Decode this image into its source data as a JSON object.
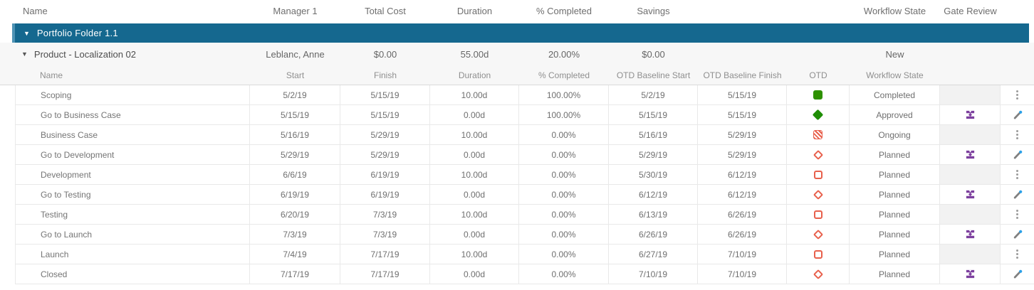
{
  "header": {
    "columns": [
      "Name",
      "Manager 1",
      "Total Cost",
      "Duration",
      "% Completed",
      "Savings",
      "Workflow State",
      "Gate Review"
    ]
  },
  "portfolio": {
    "caret": "▼",
    "label": "Portfolio Folder 1.1"
  },
  "product": {
    "caret": "▼",
    "name": "Product - Localization 02",
    "manager": "Leblanc, Anne",
    "total_cost": "$0.00",
    "duration": "55.00d",
    "pct_completed": "20.00%",
    "savings": "$0.00",
    "workflow_state": "New"
  },
  "subheader": {
    "columns": [
      "Name",
      "Start",
      "Finish",
      "Duration",
      "% Completed",
      "OTD Baseline Start",
      "OTD Baseline Finish",
      "OTD",
      "Workflow State"
    ]
  },
  "rows": [
    {
      "name": "Scoping",
      "start": "5/2/19",
      "finish": "5/15/19",
      "duration": "10.00d",
      "pct": "100.00%",
      "otd_start": "5/2/19",
      "otd_finish": "5/15/19",
      "otd_icon": "green-square",
      "workflow": "Completed",
      "gate": false,
      "action": "menu"
    },
    {
      "name": "Go to Business Case",
      "start": "5/15/19",
      "finish": "5/15/19",
      "duration": "0.00d",
      "pct": "100.00%",
      "otd_start": "5/15/19",
      "otd_finish": "5/15/19",
      "otd_icon": "green-diamond",
      "workflow": "Approved",
      "gate": true,
      "action": "edit"
    },
    {
      "name": "Business Case",
      "start": "5/16/19",
      "finish": "5/29/19",
      "duration": "10.00d",
      "pct": "0.00%",
      "otd_start": "5/16/19",
      "otd_finish": "5/29/19",
      "otd_icon": "red-hatched-square",
      "workflow": "Ongoing",
      "gate": false,
      "action": "menu"
    },
    {
      "name": "Go to Development",
      "start": "5/29/19",
      "finish": "5/29/19",
      "duration": "0.00d",
      "pct": "0.00%",
      "otd_start": "5/29/19",
      "otd_finish": "5/29/19",
      "otd_icon": "red-diamond-outline",
      "workflow": "Planned",
      "gate": true,
      "action": "edit"
    },
    {
      "name": "Development",
      "start": "6/6/19",
      "finish": "6/19/19",
      "duration": "10.00d",
      "pct": "0.00%",
      "otd_start": "5/30/19",
      "otd_finish": "6/12/19",
      "otd_icon": "red-square-outline",
      "workflow": "Planned",
      "gate": false,
      "action": "menu"
    },
    {
      "name": "Go to Testing",
      "start": "6/19/19",
      "finish": "6/19/19",
      "duration": "0.00d",
      "pct": "0.00%",
      "otd_start": "6/12/19",
      "otd_finish": "6/12/19",
      "otd_icon": "red-diamond-outline",
      "workflow": "Planned",
      "gate": true,
      "action": "edit"
    },
    {
      "name": "Testing",
      "start": "6/20/19",
      "finish": "7/3/19",
      "duration": "10.00d",
      "pct": "0.00%",
      "otd_start": "6/13/19",
      "otd_finish": "6/26/19",
      "otd_icon": "red-square-outline",
      "workflow": "Planned",
      "gate": false,
      "action": "menu"
    },
    {
      "name": "Go to Launch",
      "start": "7/3/19",
      "finish": "7/3/19",
      "duration": "0.00d",
      "pct": "0.00%",
      "otd_start": "6/26/19",
      "otd_finish": "6/26/19",
      "otd_icon": "red-diamond-outline",
      "workflow": "Planned",
      "gate": true,
      "action": "edit"
    },
    {
      "name": "Launch",
      "start": "7/4/19",
      "finish": "7/17/19",
      "duration": "10.00d",
      "pct": "0.00%",
      "otd_start": "6/27/19",
      "otd_finish": "7/10/19",
      "otd_icon": "red-square-outline",
      "workflow": "Planned",
      "gate": false,
      "action": "menu"
    },
    {
      "name": "Closed",
      "start": "7/17/19",
      "finish": "7/17/19",
      "duration": "0.00d",
      "pct": "0.00%",
      "otd_start": "7/10/19",
      "otd_finish": "7/10/19",
      "otd_icon": "red-diamond-outline",
      "workflow": "Planned",
      "gate": true,
      "action": "edit"
    }
  ],
  "icons": {
    "expander-caret": "▼",
    "row-menu": "vertical-ellipsis",
    "edit-pencil": "gray pencil with blue dot",
    "gate-review": "purple gate (bars + diamond)",
    "otd-green-square": "filled green rounded square",
    "otd-green-diamond": "filled green diamond",
    "otd-red-hatched-square": "red diagonal-hatched rounded square",
    "otd-red-diamond-outline": "red outlined diamond",
    "otd-red-square-outline": "red outlined rounded square"
  },
  "colors": {
    "portfolio_bar_blue": "#15688f",
    "portfolio_bar_accent": "#4e93b5",
    "otd_green": "#2e9100",
    "otd_red": "#e8604c",
    "gate_purple": "#7c3f9e",
    "edit_dot_blue": "#2aa0e8",
    "subrow_gray_bg": "#f7f7f7",
    "gate_empty_bg": "#f2f2f2"
  }
}
